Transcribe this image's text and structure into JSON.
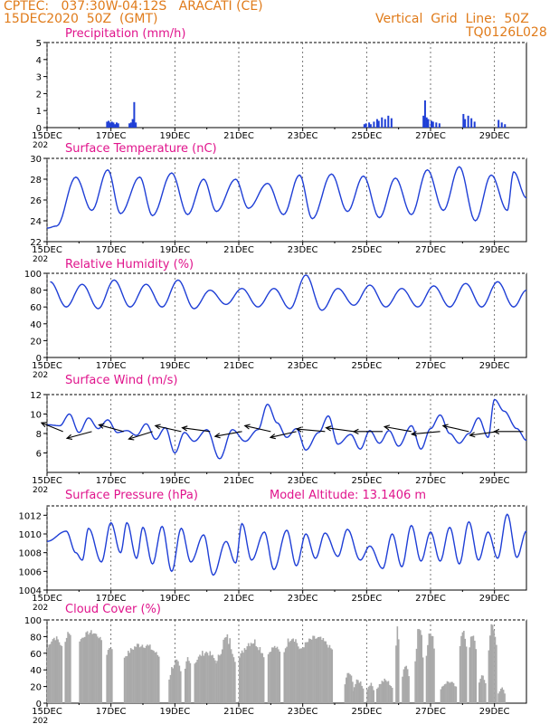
{
  "header": {
    "line1": "CPTEC:   037:30W-04:12S   ARACATI (CE)",
    "line2": "15DEC2020  50Z  (GMT)",
    "right1": "Vertical  Grid  Line:  50Z",
    "right2": "TQ0126L028"
  },
  "colors": {
    "header": "#e07b1a",
    "title": "#e0148c",
    "series": "#1f3fd6",
    "cloud": "#a9a9a9",
    "grid": "#555555"
  },
  "x_axis": {
    "ticks": [
      "15DEC",
      "17DEC",
      "19DEC",
      "21DEC",
      "23DEC",
      "25DEC",
      "27DEC",
      "29DEC"
    ],
    "tick_days": [
      0,
      2,
      4,
      6,
      8,
      10,
      12,
      14
    ],
    "range_days": [
      0,
      15
    ],
    "year_label": "202"
  },
  "chart_data": [
    {
      "type": "bar",
      "title": "Precipitation  (mm/h)",
      "ylim": [
        0,
        5
      ],
      "yticks": [
        0,
        1,
        2,
        3,
        4,
        5
      ],
      "bars": [
        [
          1.85,
          0.35
        ],
        [
          1.9,
          0.4
        ],
        [
          1.95,
          0.3
        ],
        [
          2.0,
          0.35
        ],
        [
          2.05,
          0.3
        ],
        [
          2.1,
          0.2
        ],
        [
          2.15,
          0.3
        ],
        [
          2.2,
          0.25
        ],
        [
          2.55,
          0.25
        ],
        [
          2.6,
          0.3
        ],
        [
          2.65,
          0.5
        ],
        [
          2.7,
          1.5
        ],
        [
          2.75,
          0.3
        ],
        [
          9.9,
          0.2
        ],
        [
          9.95,
          0.25
        ],
        [
          10.05,
          0.3
        ],
        [
          10.1,
          0.2
        ],
        [
          10.2,
          0.35
        ],
        [
          10.3,
          0.5
        ],
        [
          10.35,
          0.4
        ],
        [
          10.45,
          0.6
        ],
        [
          10.55,
          0.5
        ],
        [
          10.65,
          0.7
        ],
        [
          10.75,
          0.55
        ],
        [
          11.75,
          0.7
        ],
        [
          11.8,
          1.6
        ],
        [
          11.85,
          0.6
        ],
        [
          11.9,
          0.5
        ],
        [
          12.0,
          0.4
        ],
        [
          12.05,
          0.35
        ],
        [
          12.15,
          0.3
        ],
        [
          12.25,
          0.25
        ],
        [
          13.0,
          0.8
        ],
        [
          13.05,
          0.5
        ],
        [
          13.15,
          0.7
        ],
        [
          13.25,
          0.55
        ],
        [
          13.35,
          0.35
        ],
        [
          14.1,
          0.45
        ],
        [
          14.2,
          0.3
        ],
        [
          14.3,
          0.2
        ]
      ]
    },
    {
      "type": "line",
      "title": "Surface  Temperature  (nC)",
      "ylim": [
        22,
        30
      ],
      "yticks": [
        22,
        24,
        26,
        28,
        30
      ],
      "mins": [
        [
          0,
          23.3
        ],
        [
          0.3,
          23.5
        ],
        [
          1.4,
          25.0
        ],
        [
          2.3,
          24.7
        ],
        [
          3.3,
          24.5
        ],
        [
          4.4,
          24.6
        ],
        [
          5.3,
          24.9
        ],
        [
          6.3,
          25.2
        ],
        [
          7.4,
          24.6
        ],
        [
          8.3,
          24.2
        ],
        [
          9.4,
          24.9
        ],
        [
          10.4,
          24.3
        ],
        [
          11.4,
          24.6
        ],
        [
          12.4,
          25.0
        ],
        [
          13.4,
          24.0
        ],
        [
          14.4,
          25.0
        ]
      ],
      "maxs": [
        [
          0.9,
          28.2
        ],
        [
          1.9,
          28.9
        ],
        [
          2.9,
          28.2
        ],
        [
          3.9,
          28.6
        ],
        [
          4.9,
          28.0
        ],
        [
          5.9,
          28.0
        ],
        [
          6.9,
          27.6
        ],
        [
          7.9,
          28.4
        ],
        [
          8.9,
          28.5
        ],
        [
          9.9,
          28.3
        ],
        [
          10.9,
          28.1
        ],
        [
          11.9,
          28.9
        ],
        [
          12.9,
          29.2
        ],
        [
          13.9,
          28.4
        ],
        [
          14.6,
          28.7
        ],
        [
          15,
          26.2
        ]
      ]
    },
    {
      "type": "line",
      "title": "Relative  Humidity  (%)",
      "ylim": [
        0,
        100
      ],
      "yticks": [
        0,
        20,
        40,
        60,
        80,
        100
      ],
      "mins": [
        [
          0.6,
          60
        ],
        [
          1.6,
          58
        ],
        [
          2.6,
          60
        ],
        [
          3.6,
          60
        ],
        [
          4.6,
          58
        ],
        [
          5.6,
          63
        ],
        [
          6.6,
          60
        ],
        [
          7.6,
          58
        ],
        [
          8.6,
          56
        ],
        [
          9.6,
          62
        ],
        [
          10.6,
          60
        ],
        [
          11.6,
          60
        ],
        [
          12.6,
          60
        ],
        [
          13.6,
          60
        ],
        [
          14.6,
          60
        ]
      ],
      "maxs": [
        [
          0.1,
          90
        ],
        [
          1.1,
          87
        ],
        [
          2.1,
          92
        ],
        [
          3.1,
          87
        ],
        [
          4.1,
          92
        ],
        [
          5.1,
          80
        ],
        [
          6.1,
          82
        ],
        [
          7.1,
          82
        ],
        [
          8.1,
          98
        ],
        [
          9.1,
          82
        ],
        [
          10.1,
          86
        ],
        [
          11.1,
          82
        ],
        [
          12.1,
          85
        ],
        [
          13.1,
          88
        ],
        [
          14.1,
          90
        ],
        [
          15,
          80
        ]
      ]
    },
    {
      "type": "line",
      "title": "Surface  Wind  (m/s)",
      "ylim": [
        4,
        12
      ],
      "yticks": [
        6,
        8,
        10,
        12
      ],
      "points": [
        [
          0,
          8.9
        ],
        [
          0.4,
          8.8
        ],
        [
          0.7,
          10.0
        ],
        [
          1.0,
          8.1
        ],
        [
          1.3,
          9.6
        ],
        [
          1.6,
          8.5
        ],
        [
          1.9,
          9.4
        ],
        [
          2.2,
          8.1
        ],
        [
          2.5,
          8.3
        ],
        [
          2.8,
          7.8
        ],
        [
          3.1,
          9.0
        ],
        [
          3.4,
          7.4
        ],
        [
          3.7,
          8.6
        ],
        [
          4.0,
          6.0
        ],
        [
          4.3,
          8.1
        ],
        [
          4.6,
          7.2
        ],
        [
          5.0,
          8.4
        ],
        [
          5.4,
          5.4
        ],
        [
          5.8,
          8.4
        ],
        [
          6.2,
          7.2
        ],
        [
          6.6,
          8.4
        ],
        [
          6.9,
          11.0
        ],
        [
          7.2,
          9.1
        ],
        [
          7.5,
          7.6
        ],
        [
          7.8,
          8.5
        ],
        [
          8.1,
          6.3
        ],
        [
          8.5,
          8.1
        ],
        [
          8.8,
          9.8
        ],
        [
          9.1,
          6.9
        ],
        [
          9.5,
          7.9
        ],
        [
          9.8,
          6.4
        ],
        [
          10.1,
          8.3
        ],
        [
          10.4,
          7.0
        ],
        [
          10.7,
          8.3
        ],
        [
          11.0,
          6.7
        ],
        [
          11.4,
          8.8
        ],
        [
          11.7,
          6.4
        ],
        [
          12.0,
          8.5
        ],
        [
          12.3,
          9.9
        ],
        [
          12.6,
          8.0
        ],
        [
          12.9,
          7.0
        ],
        [
          13.2,
          8.0
        ],
        [
          13.5,
          9.6
        ],
        [
          13.8,
          7.6
        ],
        [
          14.0,
          11.5
        ],
        [
          14.3,
          10.3
        ],
        [
          14.7,
          8.5
        ],
        [
          15,
          7.3
        ]
      ],
      "arrow_times": [
        0.5,
        1.4,
        2.4,
        3.3,
        4.2,
        5.1,
        6.1,
        7.0,
        7.8,
        8.7,
        9.6,
        10.5,
        11.4,
        12.3,
        13.2,
        14.1,
        14.9
      ],
      "arrow_dirs": [
        [
          -1,
          0.9
        ],
        [
          -1,
          -0.6
        ],
        [
          -1,
          0.6
        ],
        [
          -1,
          -0.7
        ],
        [
          -1,
          0.5
        ],
        [
          -1,
          0.3
        ],
        [
          -1,
          -0.4
        ],
        [
          -1,
          0.5
        ],
        [
          -1,
          -0.5
        ],
        [
          -1,
          0.2
        ],
        [
          -1,
          0.3
        ],
        [
          -1,
          0.0
        ],
        [
          -1,
          0.4
        ],
        [
          -1,
          -0.2
        ],
        [
          -1,
          0.5
        ],
        [
          -1,
          -0.3
        ],
        [
          -1,
          0.0
        ]
      ]
    },
    {
      "type": "line",
      "title": "Surface  Pressure  (hPa)",
      "annotation": "Model  Altitude:  13.1406  m",
      "ylim": [
        1004,
        1013
      ],
      "yticks": [
        1004,
        1006,
        1008,
        1010,
        1012
      ],
      "points": [
        [
          0,
          1009.2
        ],
        [
          0.6,
          1010.3
        ],
        [
          0.9,
          1008.0
        ],
        [
          1.1,
          1007.2
        ],
        [
          1.3,
          1010.6
        ],
        [
          1.7,
          1007.0
        ],
        [
          2.0,
          1011.2
        ],
        [
          2.3,
          1008.0
        ],
        [
          2.5,
          1011.2
        ],
        [
          2.8,
          1007.4
        ],
        [
          3.0,
          1010.7
        ],
        [
          3.3,
          1006.8
        ],
        [
          3.6,
          1010.8
        ],
        [
          3.9,
          1006.0
        ],
        [
          4.2,
          1010.6
        ],
        [
          4.5,
          1007.0
        ],
        [
          4.9,
          1009.9
        ],
        [
          5.2,
          1005.6
        ],
        [
          5.6,
          1009.2
        ],
        [
          5.9,
          1006.9
        ],
        [
          6.1,
          1011.1
        ],
        [
          6.4,
          1007.2
        ],
        [
          6.8,
          1010.2
        ],
        [
          7.1,
          1006.2
        ],
        [
          7.5,
          1010.4
        ],
        [
          7.8,
          1006.6
        ],
        [
          8.1,
          1010.0
        ],
        [
          8.4,
          1007.4
        ],
        [
          8.7,
          1010.1
        ],
        [
          9.1,
          1007.6
        ],
        [
          9.4,
          1010.5
        ],
        [
          9.8,
          1007.2
        ],
        [
          10.1,
          1008.7
        ],
        [
          10.5,
          1006.3
        ],
        [
          10.8,
          1010.0
        ],
        [
          11.1,
          1006.5
        ],
        [
          11.4,
          1010.9
        ],
        [
          11.7,
          1007.1
        ],
        [
          12.0,
          1010.2
        ],
        [
          12.3,
          1007.1
        ],
        [
          12.6,
          1010.7
        ],
        [
          12.9,
          1006.8
        ],
        [
          13.2,
          1011.3
        ],
        [
          13.5,
          1007.2
        ],
        [
          13.8,
          1010.2
        ],
        [
          14.1,
          1007.4
        ],
        [
          14.4,
          1012.1
        ],
        [
          14.7,
          1007.5
        ],
        [
          15,
          1010.3
        ]
      ]
    },
    {
      "type": "bar",
      "title": "Cloud  Cover  (%)",
      "ylim": [
        0,
        100
      ],
      "yticks": [
        0,
        20,
        40,
        60,
        80,
        100
      ],
      "clusters": [
        [
          0,
          0.45,
          55,
          82
        ],
        [
          0.55,
          0.75,
          60,
          90
        ],
        [
          1.0,
          1.7,
          65,
          88
        ],
        [
          1.85,
          2.05,
          50,
          70
        ],
        [
          2.4,
          3.5,
          40,
          75
        ],
        [
          3.8,
          4.2,
          10,
          55
        ],
        [
          4.3,
          4.5,
          25,
          60
        ],
        [
          4.6,
          5.3,
          35,
          65
        ],
        [
          5.3,
          5.9,
          20,
          85
        ],
        [
          6.0,
          6.8,
          35,
          80
        ],
        [
          6.9,
          7.3,
          50,
          70
        ],
        [
          7.4,
          7.9,
          45,
          85
        ],
        [
          7.9,
          8.9,
          50,
          82
        ],
        [
          9.3,
          9.55,
          10,
          40
        ],
        [
          9.55,
          9.9,
          5,
          30
        ],
        [
          10.0,
          10.2,
          10,
          25
        ],
        [
          10.3,
          10.8,
          8,
          30
        ],
        [
          10.9,
          11.0,
          40,
          100
        ],
        [
          11.1,
          11.3,
          20,
          50
        ],
        [
          11.5,
          11.75,
          20,
          100
        ],
        [
          11.85,
          12.1,
          25,
          100
        ],
        [
          12.3,
          12.8,
          10,
          28
        ],
        [
          12.9,
          13.1,
          40,
          100
        ],
        [
          13.2,
          13.4,
          50,
          88
        ],
        [
          13.5,
          13.7,
          15,
          35
        ],
        [
          13.8,
          14.05,
          40,
          100
        ],
        [
          14.1,
          14.3,
          5,
          20
        ]
      ]
    }
  ]
}
